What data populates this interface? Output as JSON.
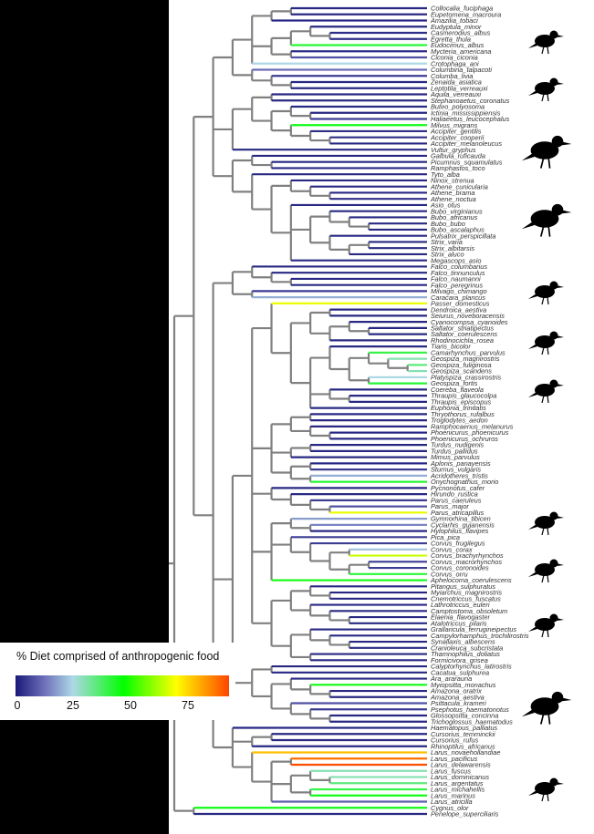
{
  "legend": {
    "title": "% Diet comprised of anthropogenic food",
    "ticks": [
      "0",
      "25",
      "50",
      "75"
    ],
    "scale_max": 93,
    "color_stops": [
      {
        "value": 0,
        "color": "#1a1a78"
      },
      {
        "value": 12,
        "color": "#6b6bb8"
      },
      {
        "value": 25,
        "color": "#add8e6"
      },
      {
        "value": 47,
        "color": "#00ff00"
      },
      {
        "value": 70,
        "color": "#ffff00"
      },
      {
        "value": 93,
        "color": "#ff4500"
      }
    ]
  },
  "internal_branch_color": "#808080",
  "silhouettes": [
    "ibis-icon",
    "hawk-icon",
    "eagle-icon",
    "owl-icon",
    "falcon-icon",
    "finch-icon",
    "tanager-icon",
    "tit-icon",
    "crow-icon",
    "flycatcher-icon",
    "cockatoo-icon",
    "gull-icon"
  ],
  "tips": [
    {
      "name": "Collocalia_fuciphaga",
      "diet": 2
    },
    {
      "name": "Eupetomena_macroura",
      "diet": 2
    },
    {
      "name": "Amazilia_tobaci",
      "diet": 2
    },
    {
      "name": "Eudyptula_minor",
      "diet": 2
    },
    {
      "name": "Casmerodius_albus",
      "diet": 3
    },
    {
      "name": "Egretta_thula",
      "diet": 3
    },
    {
      "name": "Eudocimus_albus",
      "diet": 42
    },
    {
      "name": "Mycteria_americana",
      "diet": 3
    },
    {
      "name": "Ciconia_ciconia",
      "diet": 8
    },
    {
      "name": "Crotophaga_ani",
      "diet": 25
    },
    {
      "name": "Columbina_talpacoti",
      "diet": 12
    },
    {
      "name": "Columba_livia",
      "diet": 5
    },
    {
      "name": "Zenaida_asiatica",
      "diet": 2
    },
    {
      "name": "Leptotila_verreauxi",
      "diet": 2
    },
    {
      "name": "Aquila_verreauxi",
      "diet": 2
    },
    {
      "name": "Stephanoaetus_coronatus",
      "diet": 2
    },
    {
      "name": "Buteo_polyosoma",
      "diet": 2
    },
    {
      "name": "Ictinia_mississippiensis",
      "diet": 2
    },
    {
      "name": "Haliaeetus_leucocephalus",
      "diet": 5
    },
    {
      "name": "Milvus_migrans",
      "diet": 45
    },
    {
      "name": "Accipiter_gentilis",
      "diet": 3
    },
    {
      "name": "Accipiter_cooperii",
      "diet": 3
    },
    {
      "name": "Accipiter_melanoleucus",
      "diet": 2
    },
    {
      "name": "Vultur_gryphus",
      "diet": 2
    },
    {
      "name": "Galbula_ruficauda",
      "diet": 2
    },
    {
      "name": "Picumnus_squamulatus",
      "diet": 2
    },
    {
      "name": "Ramphastos_toco",
      "diet": 2
    },
    {
      "name": "Tyto_alba",
      "diet": 2
    },
    {
      "name": "Ninox_strenua",
      "diet": 2
    },
    {
      "name": "Athene_cunicularia",
      "diet": 2
    },
    {
      "name": "Athene_brama",
      "diet": 2
    },
    {
      "name": "Athene_noctua",
      "diet": 3
    },
    {
      "name": "Asio_otus",
      "diet": 2
    },
    {
      "name": "Bubo_virginianus",
      "diet": 2
    },
    {
      "name": "Bubo_africanus",
      "diet": 2
    },
    {
      "name": "Bubo_bubo",
      "diet": 2
    },
    {
      "name": "Bubo_ascalaphus",
      "diet": 2
    },
    {
      "name": "Pulsatrix_perspicillata",
      "diet": 2
    },
    {
      "name": "Strix_varia",
      "diet": 2
    },
    {
      "name": "Strix_albitarsis",
      "diet": 2
    },
    {
      "name": "Strix_aluco",
      "diet": 2
    },
    {
      "name": "Megascops_asio",
      "diet": 2
    },
    {
      "name": "Falco_columbarius",
      "diet": 2
    },
    {
      "name": "Falco_tinnunculus",
      "diet": 2
    },
    {
      "name": "Falco_naumanni",
      "diet": 2
    },
    {
      "name": "Falco_peregrinus",
      "diet": 2
    },
    {
      "name": "Milvago_chimango",
      "diet": 5
    },
    {
      "name": "Caracara_plancus",
      "diet": 20
    },
    {
      "name": "Passer_domesticus",
      "diet": 68
    },
    {
      "name": "Dendroica_aestiva",
      "diet": 2
    },
    {
      "name": "Seiurus_noveboracensis",
      "diet": 2
    },
    {
      "name": "Cyanocompsa_cyanoides",
      "diet": 2
    },
    {
      "name": "Saltator_striatipectus",
      "diet": 2
    },
    {
      "name": "Saltator_coerulescens",
      "diet": 2
    },
    {
      "name": "Rhodinocichla_rosea",
      "diet": 2
    },
    {
      "name": "Tiaris_bicolor",
      "diet": 2
    },
    {
      "name": "Camarhynchus_parvulus",
      "diet": 40
    },
    {
      "name": "Geospiza_magnirostris",
      "diet": 30
    },
    {
      "name": "Geospiza_fuliginosa",
      "diet": 35
    },
    {
      "name": "Geospiza_scandens",
      "diet": 30
    },
    {
      "name": "Platyspiza_crassirostris",
      "diet": 25
    },
    {
      "name": "Geospiza_fortis",
      "diet": 42
    },
    {
      "name": "Coereba_flaveola",
      "diet": 2
    },
    {
      "name": "Thraupis_glaucocolpa",
      "diet": 2
    },
    {
      "name": "Thraupis_episcopus",
      "diet": 2
    },
    {
      "name": "Euphonia_trinitatis",
      "diet": 2
    },
    {
      "name": "Thryothorus_rufalbus",
      "diet": 2
    },
    {
      "name": "Troglodytes_aedon",
      "diet": 2
    },
    {
      "name": "Ramphocaenus_melanurus",
      "diet": 2
    },
    {
      "name": "Phoenicurus_phoenicurus",
      "diet": 2
    },
    {
      "name": "Phoenicurus_ochruros",
      "diet": 2
    },
    {
      "name": "Turdus_nudigenis",
      "diet": 2
    },
    {
      "name": "Turdus_pallidus",
      "diet": 2
    },
    {
      "name": "Mimus_parvulus",
      "diet": 2
    },
    {
      "name": "Aplonis_panayensis",
      "diet": 2
    },
    {
      "name": "Sturnus_vulgaris",
      "diet": 5
    },
    {
      "name": "Acridotheres_tristis",
      "diet": 20
    },
    {
      "name": "Onychognathus_morio",
      "diet": 42
    },
    {
      "name": "Pycnonotus_cafer",
      "diet": 2
    },
    {
      "name": "Hirundo_rustica",
      "diet": 2
    },
    {
      "name": "Parus_caeruleus",
      "diet": 5
    },
    {
      "name": "Parus_major",
      "diet": 8
    },
    {
      "name": "Parus_atricapillus",
      "diet": 68
    },
    {
      "name": "Gymnorhina_tibicen",
      "diet": 18
    },
    {
      "name": "Cyclarhis_gujanensis",
      "diet": 15
    },
    {
      "name": "Hylophilus_flavipes",
      "diet": 2
    },
    {
      "name": "Pica_pica",
      "diet": 5
    },
    {
      "name": "Corvus_frugilegus",
      "diet": 5
    },
    {
      "name": "Corvus_corax",
      "diet": 22
    },
    {
      "name": "Corvus_brachyrhynchos",
      "diet": 65
    },
    {
      "name": "Corvus_macrorhynchos",
      "diet": 5
    },
    {
      "name": "Corvus_coronoides",
      "diet": 5
    },
    {
      "name": "Corvus_orru",
      "diet": 42
    },
    {
      "name": "Aphelocoma_coerulescens",
      "diet": 45
    },
    {
      "name": "Pitangus_sulphuratus",
      "diet": 2
    },
    {
      "name": "Myiarchus_magnirostris",
      "diet": 2
    },
    {
      "name": "Cnemotriccus_fuscatus",
      "diet": 2
    },
    {
      "name": "Lathrotriccus_euleri",
      "diet": 2
    },
    {
      "name": "Camptostoma_obsoletum",
      "diet": 2
    },
    {
      "name": "Elaenia_flavogaster",
      "diet": 2
    },
    {
      "name": "Atalotriccus_pilaris",
      "diet": 2
    },
    {
      "name": "Grallaricula_ferrugineipectus",
      "diet": 2
    },
    {
      "name": "Campylorhamphus_trochilirostris",
      "diet": 2
    },
    {
      "name": "Synallaxis_albescens",
      "diet": 2
    },
    {
      "name": "Cranioleuca_subcristata",
      "diet": 2
    },
    {
      "name": "Thamnophilus_doliatus",
      "diet": 2
    },
    {
      "name": "Formicivora_grisea",
      "diet": 2
    },
    {
      "name": "Calyptorhynchus_latirostris",
      "diet": 2
    },
    {
      "name": "Cacatua_sulphurea",
      "diet": 2
    },
    {
      "name": "Ara_ararauna",
      "diet": 2
    },
    {
      "name": "Myiopsitta_monachus",
      "diet": 45
    },
    {
      "name": "Amazona_oratrix",
      "diet": 2
    },
    {
      "name": "Amazona_aestiva",
      "diet": 2
    },
    {
      "name": "Psittacula_krameri",
      "diet": 8
    },
    {
      "name": "Psephotus_haematonotus",
      "diet": 5
    },
    {
      "name": "Glossopsitta_concinna",
      "diet": 2
    },
    {
      "name": "Trichoglossus_haematodus",
      "diet": 2
    },
    {
      "name": "Haematopus_palliatus",
      "diet": 2
    },
    {
      "name": "Cursorius_temminckii",
      "diet": 2
    },
    {
      "name": "Cursorius_rufus",
      "diet": 2
    },
    {
      "name": "Rhinoptilus_africanus",
      "diet": 2
    },
    {
      "name": "Larus_novaehollandiae",
      "diet": 78
    },
    {
      "name": "Larus_pacificus",
      "diet": 88
    },
    {
      "name": "Larus_delawarensis",
      "diet": 92
    },
    {
      "name": "Larus_fuscus",
      "diet": 30
    },
    {
      "name": "Larus_dominicanus",
      "diet": 30
    },
    {
      "name": "Larus_argentatus",
      "diet": 35
    },
    {
      "name": "Larus_michahellis",
      "diet": 40
    },
    {
      "name": "Larus_marinus",
      "diet": 45
    },
    {
      "name": "Larus_atricilla",
      "diet": 10
    },
    {
      "name": "Cygnus_olor",
      "diet": 45
    },
    {
      "name": "Penelope_superciliaris",
      "diet": 2
    }
  ]
}
